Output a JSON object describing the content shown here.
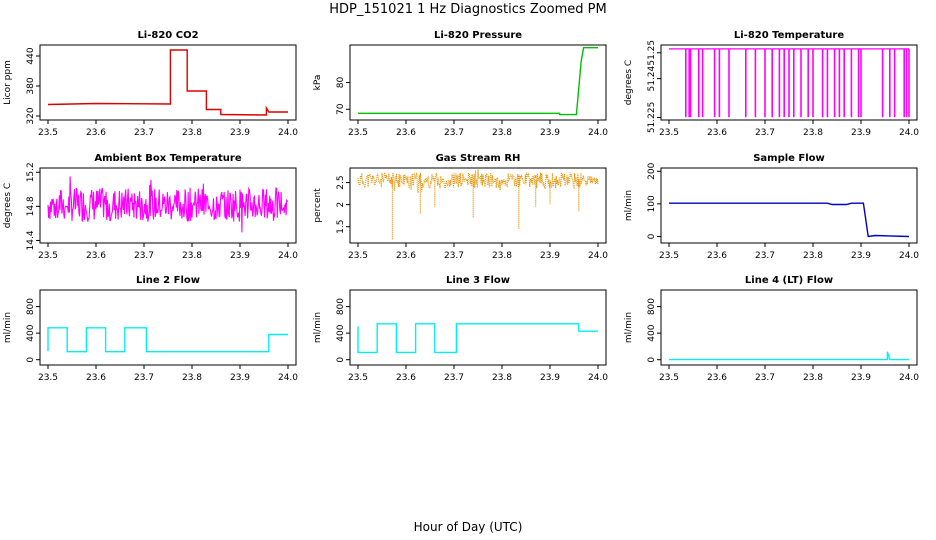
{
  "figure": {
    "title": "HDP_151021  1 Hz Diagnostics Zoomed PM",
    "xlabel": "Hour of Day (UTC)"
  },
  "chart_data": [
    {
      "type": "line",
      "title": "Li-820 CO2",
      "ylabel": "Licor ppm",
      "color": "#dd0000",
      "xlim": [
        23.5,
        24.0
      ],
      "ylim": [
        312,
        462
      ],
      "xticks": [
        "23.5",
        "23.6",
        "23.7",
        "23.8",
        "23.9",
        "24.0"
      ],
      "yticks": [
        320,
        380,
        440
      ],
      "segments": [
        [
          23.5,
          343
        ],
        [
          23.6,
          345
        ],
        [
          23.755,
          344
        ],
        [
          23.755,
          452
        ],
        [
          23.79,
          452
        ],
        [
          23.79,
          370
        ],
        [
          23.83,
          370
        ],
        [
          23.83,
          333
        ],
        [
          23.86,
          333
        ],
        [
          23.86,
          323
        ],
        [
          23.955,
          322
        ],
        [
          23.955,
          336
        ],
        [
          23.96,
          328
        ],
        [
          24.0,
          328
        ]
      ]
    },
    {
      "type": "line",
      "title": "Li-820 Pressure",
      "ylabel": "kPa",
      "color": "#00c000",
      "xlim": [
        23.5,
        24.0
      ],
      "ylim": [
        66,
        94
      ],
      "xticks": [
        "23.5",
        "23.6",
        "23.7",
        "23.8",
        "23.9",
        "24.0"
      ],
      "yticks": [
        70,
        80
      ],
      "segments": [
        [
          23.5,
          68.5
        ],
        [
          23.92,
          68.5
        ],
        [
          23.92,
          68.0
        ],
        [
          23.955,
          68.0
        ],
        [
          23.965,
          88
        ],
        [
          23.97,
          93
        ],
        [
          24.0,
          93
        ]
      ]
    },
    {
      "type": "line",
      "title": "Li-820 Temperature",
      "ylabel": "degrees C",
      "color": "#ff00ff",
      "xlim": [
        23.5,
        24.0
      ],
      "ylim": [
        51.224,
        51.253
      ],
      "xticks": [
        "23.5",
        "23.6",
        "23.7",
        "23.8",
        "23.9",
        "24.0"
      ],
      "yticks": [
        51.225,
        51.24,
        51.25
      ],
      "baseline": 51.2515,
      "dip": 51.2251,
      "dips": [
        23.535,
        23.542,
        23.545,
        23.562,
        23.57,
        23.595,
        23.605,
        23.625,
        23.66,
        23.68,
        23.7,
        23.715,
        23.73,
        23.74,
        23.75,
        23.76,
        23.775,
        23.79,
        23.8,
        23.82,
        23.83,
        23.845,
        23.855,
        23.865,
        23.88,
        23.895,
        23.9,
        23.945,
        23.96,
        23.97,
        23.99,
        23.995,
        24.0
      ]
    },
    {
      "type": "line",
      "title": "Ambient Box Temperature",
      "ylabel": "degrees C",
      "color": "#ff00ff",
      "xlim": [
        23.5,
        24.0
      ],
      "ylim": [
        14.37,
        15.25
      ],
      "xticks": [
        "23.5",
        "23.6",
        "23.7",
        "23.8",
        "23.9",
        "24.0"
      ],
      "yticks": [
        14.4,
        14.8,
        15.2
      ],
      "noise": {
        "center": 14.82,
        "amplitude": 0.2,
        "seed": 7
      }
    },
    {
      "type": "scatter",
      "title": "Gas Stream RH",
      "ylabel": "percent",
      "color": "#e89000",
      "xlim": [
        23.5,
        24.0
      ],
      "ylim": [
        1.13,
        2.83
      ],
      "xticks": [
        "23.5",
        "23.6",
        "23.7",
        "23.8",
        "23.9",
        "24.0"
      ],
      "yticks": [
        1.5,
        2.0,
        2.5
      ],
      "noise": {
        "center": 2.55,
        "amplitude": 0.18,
        "seed": 11
      },
      "spikes": [
        [
          23.572,
          1.2
        ],
        [
          23.63,
          1.8
        ],
        [
          23.66,
          1.95
        ],
        [
          23.74,
          1.7
        ],
        [
          23.835,
          1.45
        ],
        [
          23.87,
          1.95
        ],
        [
          23.9,
          2.0
        ],
        [
          23.96,
          1.85
        ]
      ]
    },
    {
      "type": "line",
      "title": "Sample Flow",
      "ylabel": "ml/min",
      "color": "#0000c0",
      "xlim": [
        23.5,
        24.0
      ],
      "ylim": [
        -20,
        210
      ],
      "xticks": [
        "23.5",
        "23.6",
        "23.7",
        "23.8",
        "23.9",
        "24.0"
      ],
      "yticks": [
        0,
        100,
        200
      ],
      "segments": [
        [
          23.5,
          102
        ],
        [
          23.83,
          102
        ],
        [
          23.84,
          98
        ],
        [
          23.87,
          98
        ],
        [
          23.88,
          102
        ],
        [
          23.905,
          102
        ],
        [
          23.915,
          0
        ],
        [
          23.93,
          3
        ],
        [
          24.0,
          0
        ]
      ]
    },
    {
      "type": "line",
      "title": "Line 2 Flow",
      "ylabel": "ml/min",
      "color": "#00f0f0",
      "xlim": [
        23.5,
        24.0
      ],
      "ylim": [
        -80,
        1050
      ],
      "xticks": [
        "23.5",
        "23.6",
        "23.7",
        "23.8",
        "23.9",
        "24.0"
      ],
      "yticks": [
        0,
        400,
        800
      ],
      "segments": [
        [
          23.5,
          130
        ],
        [
          23.5,
          480
        ],
        [
          23.54,
          480
        ],
        [
          23.54,
          120
        ],
        [
          23.58,
          120
        ],
        [
          23.58,
          480
        ],
        [
          23.62,
          480
        ],
        [
          23.62,
          120
        ],
        [
          23.66,
          120
        ],
        [
          23.66,
          480
        ],
        [
          23.705,
          480
        ],
        [
          23.705,
          120
        ],
        [
          23.96,
          120
        ],
        [
          23.96,
          380
        ],
        [
          24.0,
          380
        ]
      ]
    },
    {
      "type": "line",
      "title": "Line 3 Flow",
      "ylabel": "ml/min",
      "color": "#00f0f0",
      "xlim": [
        23.5,
        24.0
      ],
      "ylim": [
        -80,
        1050
      ],
      "xticks": [
        "23.5",
        "23.6",
        "23.7",
        "23.8",
        "23.9",
        "24.0"
      ],
      "yticks": [
        0,
        400,
        800
      ],
      "segments": [
        [
          23.5,
          110
        ],
        [
          23.5,
          500
        ],
        [
          23.5,
          110
        ],
        [
          23.54,
          110
        ],
        [
          23.54,
          540
        ],
        [
          23.58,
          540
        ],
        [
          23.58,
          110
        ],
        [
          23.62,
          110
        ],
        [
          23.62,
          540
        ],
        [
          23.66,
          540
        ],
        [
          23.66,
          110
        ],
        [
          23.705,
          110
        ],
        [
          23.705,
          540
        ],
        [
          23.96,
          540
        ],
        [
          23.96,
          430
        ],
        [
          24.0,
          430
        ]
      ]
    },
    {
      "type": "line",
      "title": "Line 4 (LT) Flow",
      "ylabel": "ml/min",
      "color": "#00f0f0",
      "xlim": [
        23.5,
        24.0
      ],
      "ylim": [
        -80,
        1050
      ],
      "xticks": [
        "23.5",
        "23.6",
        "23.7",
        "23.8",
        "23.9",
        "24.0"
      ],
      "yticks": [
        0,
        400,
        800
      ],
      "segments": [
        [
          23.5,
          2
        ],
        [
          23.955,
          2
        ],
        [
          23.955,
          120
        ],
        [
          23.96,
          2
        ],
        [
          24.0,
          2
        ]
      ]
    }
  ]
}
